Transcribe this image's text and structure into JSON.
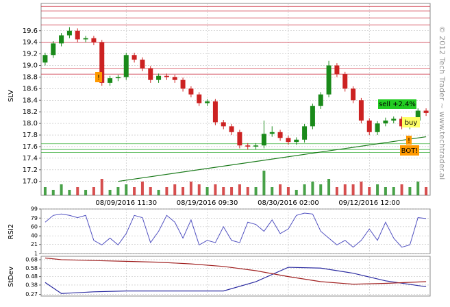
{
  "chart_data": {
    "type": "candlestick",
    "ylabel": "SLV",
    "copyright": "© 2012 Tech Trader ~ www.techtrader.ai",
    "open": [
      19.05,
      19.18,
      19.38,
      19.52,
      19.6,
      19.45,
      19.47,
      19.4,
      18.7,
      18.78,
      18.8,
      19.18,
      19.1,
      18.95,
      18.75,
      18.82,
      18.8,
      18.75,
      18.6,
      18.5,
      18.35,
      18.38,
      18.02,
      17.95,
      17.85,
      17.62,
      17.6,
      17.62,
      17.82,
      17.85,
      17.75,
      17.68,
      17.72,
      17.95,
      18.3,
      18.5,
      19.0,
      18.85,
      18.6,
      18.4,
      18.05,
      17.85,
      18.0,
      18.05,
      18.08,
      17.95,
      18.05,
      18.22
    ],
    "high": [
      19.22,
      19.42,
      19.56,
      19.66,
      19.64,
      19.51,
      19.51,
      19.44,
      18.82,
      18.84,
      19.22,
      19.22,
      19.14,
      18.99,
      18.86,
      18.86,
      18.84,
      18.79,
      18.64,
      18.54,
      18.42,
      18.42,
      18.06,
      17.99,
      17.89,
      17.66,
      17.66,
      18.05,
      17.95,
      17.89,
      17.79,
      17.76,
      17.99,
      18.34,
      18.54,
      19.08,
      19.04,
      18.89,
      18.64,
      18.44,
      18.09,
      18.04,
      18.1,
      18.12,
      18.12,
      18.09,
      18.26,
      18.26
    ],
    "low": [
      19.0,
      19.13,
      19.33,
      19.47,
      19.4,
      19.4,
      19.35,
      18.65,
      18.65,
      18.73,
      18.75,
      19.05,
      18.9,
      18.7,
      18.7,
      18.75,
      18.7,
      18.55,
      18.45,
      18.3,
      18.3,
      17.97,
      17.9,
      17.8,
      17.57,
      17.55,
      17.55,
      17.57,
      17.77,
      17.7,
      17.63,
      17.63,
      17.67,
      17.9,
      18.25,
      18.45,
      18.8,
      18.55,
      18.35,
      18.0,
      17.8,
      17.8,
      17.95,
      18.0,
      17.9,
      17.9,
      18.0,
      18.13
    ],
    "close": [
      19.18,
      19.38,
      19.52,
      19.6,
      19.45,
      19.47,
      19.4,
      18.7,
      18.78,
      18.8,
      19.18,
      19.1,
      18.95,
      18.75,
      18.82,
      18.8,
      18.75,
      18.6,
      18.5,
      18.35,
      18.38,
      18.02,
      17.95,
      17.85,
      17.62,
      17.6,
      17.62,
      17.82,
      17.85,
      17.75,
      17.68,
      17.72,
      17.95,
      18.3,
      18.5,
      19.0,
      18.85,
      18.6,
      18.4,
      18.05,
      17.85,
      18.0,
      18.05,
      18.08,
      17.95,
      18.05,
      18.22,
      18.18
    ],
    "up_color": "#1a8a1a",
    "down_color": "#cc2222",
    "ylim": [
      16.76,
      20.07
    ],
    "yticks": [
      {
        "value": 17.0,
        "label": "17.0"
      },
      {
        "value": 17.2,
        "label": "17.2"
      },
      {
        "value": 17.4,
        "label": "17.4"
      },
      {
        "value": 17.6,
        "label": "17.6"
      },
      {
        "value": 17.8,
        "label": "17.8"
      },
      {
        "value": 18.0,
        "label": "18.0"
      },
      {
        "value": 18.2,
        "label": "18.2"
      },
      {
        "value": 18.4,
        "label": "18.4"
      },
      {
        "value": 18.6,
        "label": "18.6"
      },
      {
        "value": 18.8,
        "label": "18.8"
      },
      {
        "value": 19.0,
        "label": "19.0"
      },
      {
        "value": 19.2,
        "label": "19.2"
      },
      {
        "value": 19.4,
        "label": "19.4"
      },
      {
        "value": 19.6,
        "label": "19.6"
      }
    ],
    "xticks": [
      {
        "value": 10,
        "label": "08/09/2016 11:30"
      },
      {
        "value": 20,
        "label": "08/19/2016 09:30"
      },
      {
        "value": 30,
        "label": "08/30/2016 02:00"
      },
      {
        "value": 40,
        "label": "09/12/2016 12:00"
      }
    ],
    "resistance_levels": [
      20.02,
      19.94,
      19.82,
      19.7,
      19.4,
      18.95,
      18.85
    ],
    "resistance_color": "#d04050",
    "support_levels": [
      17.65,
      17.55,
      17.5
    ],
    "support_color": "#40b040",
    "trendline": {
      "x": [
        9,
        47
      ],
      "values": [
        17.0,
        17.77
      ],
      "color": "#1a7a1a"
    },
    "volume": {
      "values": [
        3,
        2,
        4,
        2,
        3,
        2,
        3,
        6,
        2,
        3,
        4,
        3,
        5,
        3,
        2,
        3,
        4,
        3,
        5,
        4,
        3,
        4,
        3,
        3,
        4,
        3,
        3,
        9,
        3,
        4,
        3,
        2,
        4,
        5,
        4,
        6,
        3,
        4,
        4,
        5,
        3,
        4,
        3,
        3,
        4,
        3,
        5,
        3
      ],
      "ylim": [
        0,
        10
      ]
    },
    "annotations": [
      "sell +2.4%",
      "buy",
      "BOT!",
      "!",
      "!"
    ],
    "rsi": {
      "label": "RSI2",
      "color": "#5050c0",
      "values": [
        70,
        85,
        88,
        85,
        80,
        85,
        30,
        20,
        35,
        20,
        45,
        85,
        80,
        25,
        50,
        85,
        70,
        35,
        75,
        20,
        30,
        25,
        60,
        30,
        25,
        70,
        65,
        50,
        75,
        45,
        55,
        85,
        90,
        88,
        50,
        35,
        20,
        30,
        15,
        30,
        55,
        30,
        70,
        35,
        15,
        20,
        80,
        78
      ],
      "ylim": [
        1,
        99
      ],
      "yticks": [
        1,
        21,
        40,
        60,
        79,
        99
      ]
    },
    "stdev": {
      "label": "StDev",
      "x": [
        0,
        2,
        6,
        10,
        14,
        18,
        22,
        26,
        30,
        34,
        38,
        42,
        47
      ],
      "series": [
        {
          "color": "#2a2aa0",
          "values": [
            0.41,
            0.28,
            0.3,
            0.31,
            0.31,
            0.31,
            0.31,
            0.42,
            0.59,
            0.58,
            0.52,
            0.43,
            0.36
          ]
        },
        {
          "color": "#a02020",
          "values": [
            0.7,
            0.68,
            0.67,
            0.66,
            0.65,
            0.63,
            0.6,
            0.55,
            0.48,
            0.42,
            0.39,
            0.4,
            0.42
          ]
        }
      ],
      "ylim": [
        0.25,
        0.72
      ],
      "yticks": [
        0.27,
        0.38,
        0.48,
        0.58,
        0.68
      ]
    }
  }
}
